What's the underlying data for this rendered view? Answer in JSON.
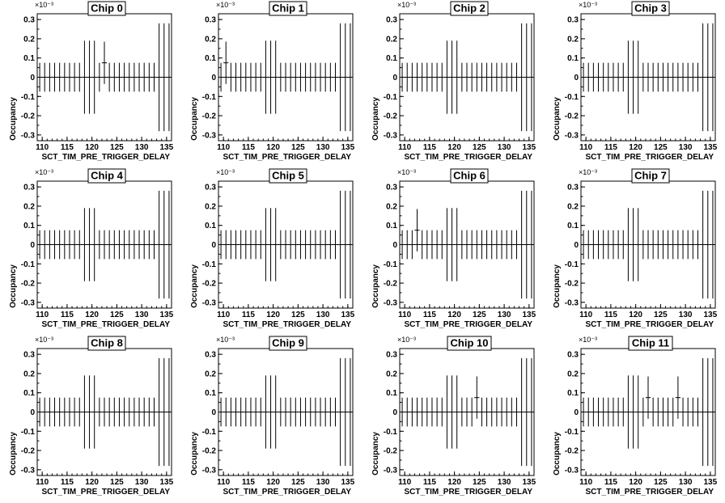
{
  "chart_data": {
    "type": "scatter",
    "layout": "3x4 grid of error-bar histograms",
    "xlabel": "SCT_TIM_PRE_TRIGGER_DELAY",
    "ylabel": "Occupancy",
    "y_multiplier_label": "×10⁻³",
    "xlim": [
      109,
      136
    ],
    "ylim": [
      -0.33,
      0.33
    ],
    "x_ticks": [
      110,
      115,
      120,
      125,
      130,
      135
    ],
    "y_ticks": [
      -0.3,
      -0.2,
      -0.1,
      0,
      0.1,
      0.2,
      0.3
    ],
    "y_tick_labels": [
      "-0.3",
      "-0.2",
      "-0.1",
      "0",
      "0.1",
      "0.2",
      "0.3"
    ],
    "x": [
      109,
      110,
      111,
      112,
      113,
      114,
      115,
      116,
      117,
      118,
      119,
      120,
      121,
      122,
      123,
      124,
      125,
      126,
      127,
      128,
      129,
      130,
      131,
      132,
      133,
      134,
      135
    ],
    "base_value": 0.0,
    "base_error": [
      0.075,
      0.075,
      0.075,
      0.075,
      0.075,
      0.075,
      0.075,
      0.075,
      0.075,
      0.19,
      0.19,
      0.19,
      0.075,
      0.075,
      0.075,
      0.075,
      0.075,
      0.075,
      0.075,
      0.075,
      0.075,
      0.075,
      0.075,
      0.075,
      0.28,
      0.28,
      0.28
    ],
    "panels": [
      {
        "title": "Chip 0",
        "excess": [
          {
            "x": 122,
            "value": 0.075,
            "error": 0.11
          }
        ]
      },
      {
        "title": "Chip 1",
        "excess": [
          {
            "x": 110,
            "value": 0.075,
            "error": 0.11
          }
        ]
      },
      {
        "title": "Chip 2",
        "excess": []
      },
      {
        "title": "Chip 3",
        "excess": []
      },
      {
        "title": "Chip 4",
        "excess": []
      },
      {
        "title": "Chip 5",
        "excess": []
      },
      {
        "title": "Chip 6",
        "excess": [
          {
            "x": 112,
            "value": 0.075,
            "error": 0.11
          }
        ]
      },
      {
        "title": "Chip 7",
        "excess": []
      },
      {
        "title": "Chip 8",
        "excess": []
      },
      {
        "title": "Chip 9",
        "excess": []
      },
      {
        "title": "Chip 10",
        "excess": [
          {
            "x": 124,
            "value": 0.075,
            "error": 0.11
          }
        ]
      },
      {
        "title": "Chip 11",
        "excess": [
          {
            "x": 122,
            "value": 0.075,
            "error": 0.11
          },
          {
            "x": 128,
            "value": 0.075,
            "error": 0.11
          }
        ]
      }
    ]
  }
}
